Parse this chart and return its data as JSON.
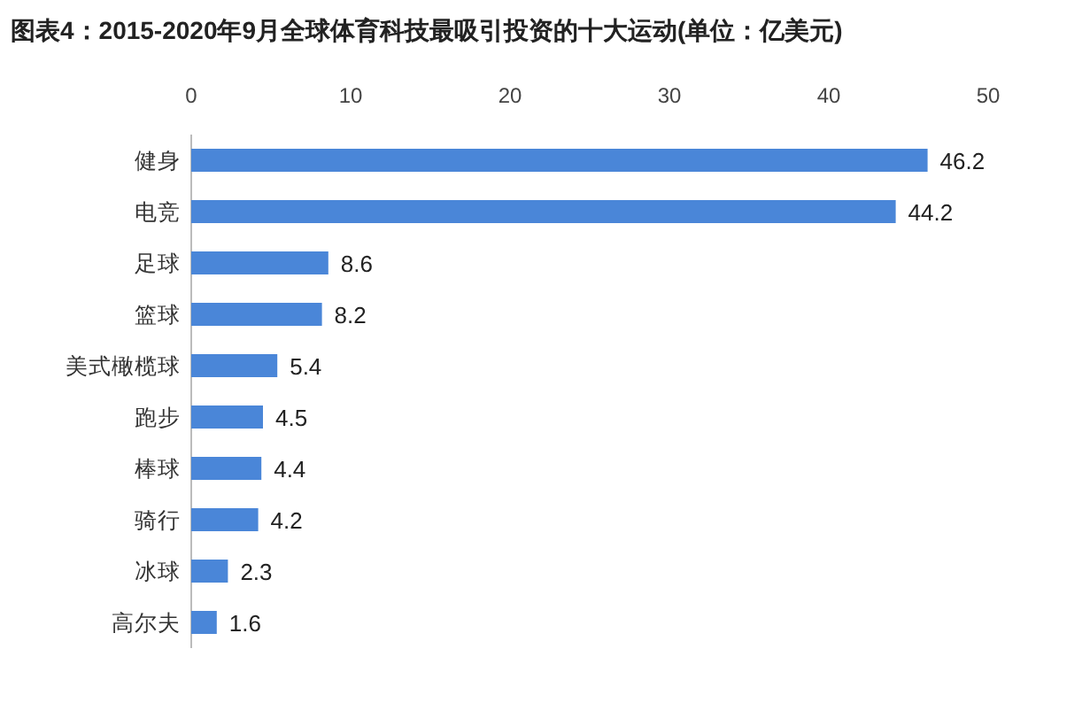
{
  "chart_data": {
    "type": "bar",
    "orientation": "horizontal",
    "title": "图表4：2015-2020年9月全球体育科技最吸引投资的十大运动(单位：亿美元)",
    "categories": [
      "健身",
      "电竞",
      "足球",
      "篮球",
      "美式橄榄球",
      "跑步",
      "棒球",
      "骑行",
      "冰球",
      "高尔夫"
    ],
    "values": [
      46.2,
      44.2,
      8.6,
      8.2,
      5.4,
      4.5,
      4.4,
      4.2,
      2.3,
      1.6
    ],
    "color": "#4a86d8",
    "xlim": [
      0,
      50
    ],
    "xticks": [
      0,
      10,
      20,
      30,
      40,
      50
    ],
    "data_labels": true
  }
}
